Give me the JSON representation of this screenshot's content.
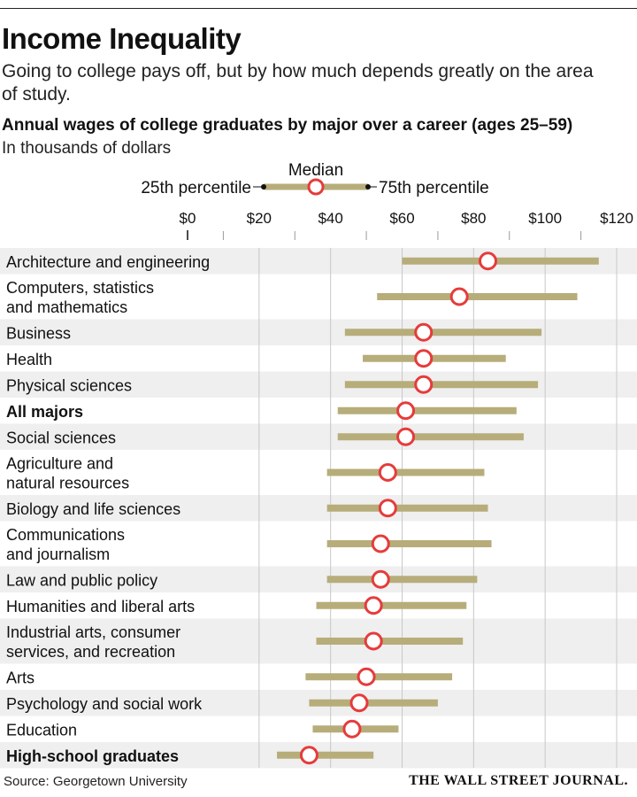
{
  "header": {
    "title": "Income Inequality",
    "subtitle": "Going to college pays off, but by how much depends greatly on the area of study."
  },
  "colors": {
    "bar": "#b7ad7a",
    "median_stroke": "#e63b3b",
    "row_shade": "#efefef",
    "grid": "#c8c8c8"
  },
  "footer": {
    "source": "Source: Georgetown University",
    "publisher": "THE WALL STREET JOURNAL."
  },
  "chart_data": {
    "type": "range-dot",
    "title": "Annual wages of college graduates by major over a career (ages 25–59)",
    "subtitle": "In thousands of dollars",
    "legend": {
      "median": "Median",
      "low": "25th percentile",
      "high": "75th percentile"
    },
    "xlim": [
      0,
      120
    ],
    "ticks": [
      0,
      20,
      40,
      60,
      80,
      100,
      120
    ],
    "tick_labels": [
      "$0",
      "$20",
      "$40",
      "$60",
      "$80",
      "$100",
      "$120"
    ],
    "grid": true,
    "rows": [
      {
        "label": [
          "Architecture and engineering"
        ],
        "bold": false,
        "p25": 60,
        "median": 84,
        "p75": 115
      },
      {
        "label": [
          "Computers, statistics",
          "and mathematics"
        ],
        "bold": false,
        "p25": 53,
        "median": 76,
        "p75": 109
      },
      {
        "label": [
          "Business"
        ],
        "bold": false,
        "p25": 44,
        "median": 66,
        "p75": 99
      },
      {
        "label": [
          "Health"
        ],
        "bold": false,
        "p25": 49,
        "median": 66,
        "p75": 89
      },
      {
        "label": [
          "Physical sciences"
        ],
        "bold": false,
        "p25": 44,
        "median": 66,
        "p75": 98
      },
      {
        "label": [
          "All majors"
        ],
        "bold": true,
        "p25": 42,
        "median": 61,
        "p75": 92
      },
      {
        "label": [
          "Social sciences"
        ],
        "bold": false,
        "p25": 42,
        "median": 61,
        "p75": 94
      },
      {
        "label": [
          "Agriculture and",
          "natural resources"
        ],
        "bold": false,
        "p25": 39,
        "median": 56,
        "p75": 83
      },
      {
        "label": [
          "Biology and life sciences"
        ],
        "bold": false,
        "p25": 39,
        "median": 56,
        "p75": 84
      },
      {
        "label": [
          "Communications",
          "and journalism"
        ],
        "bold": false,
        "p25": 39,
        "median": 54,
        "p75": 85
      },
      {
        "label": [
          "Law and public policy"
        ],
        "bold": false,
        "p25": 39,
        "median": 54,
        "p75": 81
      },
      {
        "label": [
          "Humanities and liberal arts"
        ],
        "bold": false,
        "p25": 36,
        "median": 52,
        "p75": 78
      },
      {
        "label": [
          "Industrial arts, consumer",
          "services, and recreation"
        ],
        "bold": false,
        "p25": 36,
        "median": 52,
        "p75": 77
      },
      {
        "label": [
          "Arts"
        ],
        "bold": false,
        "p25": 33,
        "median": 50,
        "p75": 74
      },
      {
        "label": [
          "Psychology and social work"
        ],
        "bold": false,
        "p25": 34,
        "median": 48,
        "p75": 70
      },
      {
        "label": [
          "Education"
        ],
        "bold": false,
        "p25": 35,
        "median": 46,
        "p75": 59
      },
      {
        "label": [
          "High-school graduates"
        ],
        "bold": true,
        "p25": 25,
        "median": 34,
        "p75": 52
      }
    ]
  }
}
